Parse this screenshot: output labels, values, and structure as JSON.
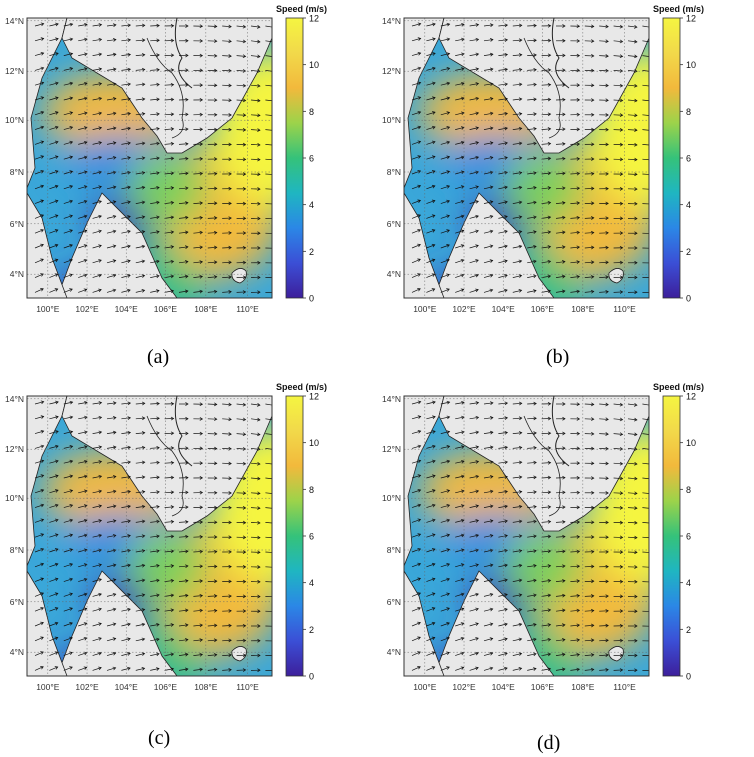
{
  "colorbar": {
    "title": "Speed (m/s)",
    "ticks": [
      "0",
      "2",
      "4",
      "6",
      "8",
      "10",
      "12"
    ],
    "range": [
      0,
      12
    ],
    "colors": [
      "#3d1f9b",
      "#3b4fd6",
      "#2b87e6",
      "#1fb6c1",
      "#35c27a",
      "#9cd34a",
      "#f2b93c",
      "#f2d94a",
      "#f5f541"
    ]
  },
  "axes": {
    "lon_ticks": [
      "100°E",
      "102°E",
      "104°E",
      "106°E",
      "108°E",
      "110°E"
    ],
    "lat_ticks": [
      "4°N",
      "6°N",
      "8°N",
      "10°N",
      "12°N",
      "14°N"
    ]
  },
  "panels": [
    {
      "caption": "(a)"
    },
    {
      "caption": "(b)"
    },
    {
      "caption": "(c)"
    },
    {
      "caption": "(d)"
    }
  ]
}
